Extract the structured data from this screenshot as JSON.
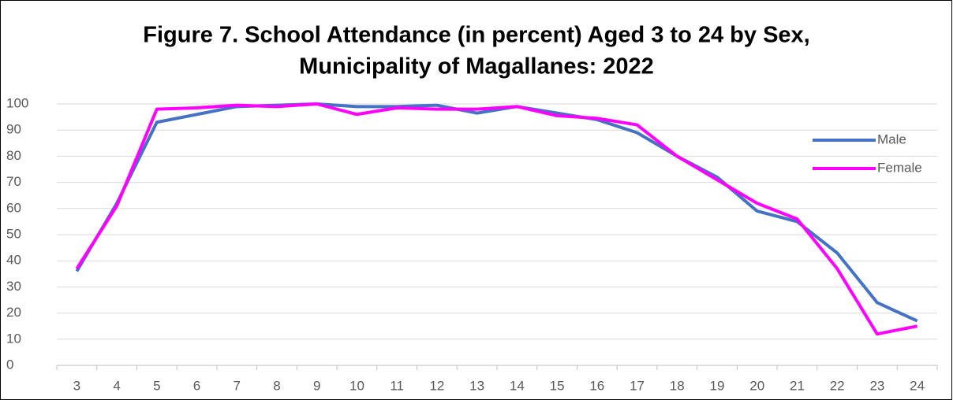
{
  "chart_data": {
    "type": "line",
    "title": [
      "Figure 7. School Attendance (in percent) Aged 3 to 24 by Sex,",
      "Municipality of Magallanes: 2022"
    ],
    "categories": [
      "3",
      "4",
      "5",
      "6",
      "7",
      "8",
      "9",
      "10",
      "11",
      "12",
      "13",
      "14",
      "15",
      "16",
      "17",
      "18",
      "19",
      "20",
      "21",
      "22",
      "23",
      "24"
    ],
    "series": [
      {
        "name": "Male",
        "color": "#4472c4",
        "values": [
          36,
          62,
          93,
          96,
          99,
          99.5,
          100,
          99,
          99,
          99.5,
          96.5,
          99,
          96.5,
          94,
          89,
          80,
          72,
          59,
          55,
          43,
          24,
          17
        ]
      },
      {
        "name": "Female",
        "color": "#ff00ff",
        "values": [
          37,
          61,
          98,
          98.5,
          99.5,
          99,
          100,
          96,
          98.5,
          98,
          98,
          99,
          95.5,
          94.5,
          92,
          80,
          71,
          62,
          56,
          37,
          12,
          15
        ]
      }
    ],
    "ylim": [
      0,
      100
    ],
    "yticks": [
      0,
      10,
      20,
      30,
      40,
      50,
      60,
      70,
      80,
      90,
      100
    ],
    "grid": true,
    "legend": "right"
  }
}
